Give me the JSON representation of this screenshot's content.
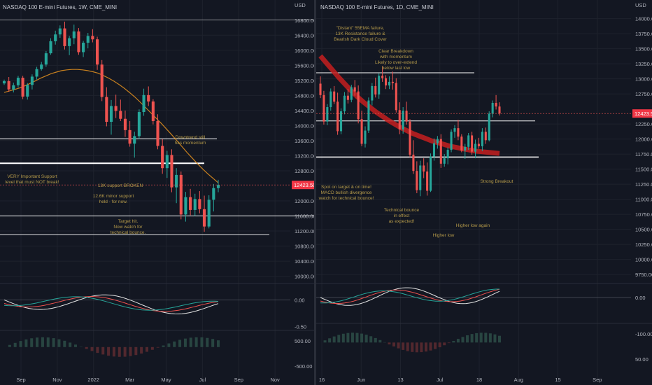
{
  "left": {
    "title": "NASDAQ 100 E-mini Futures, 1W, CME_MINI",
    "price_label": "USD",
    "current_price": "12423.50",
    "price_ticks": [
      16800,
      16400,
      16000,
      15600,
      15200,
      14800,
      14400,
      14000,
      13600,
      13200,
      12800,
      12000,
      11600,
      11200,
      10800,
      10400,
      10000
    ],
    "price_tick_labels": [
      "16800.00",
      "16400.00",
      "16000.00",
      "15600.00",
      "15200.00",
      "14800.00",
      "14400.00",
      "14000.00",
      "13600.00",
      "13200.00",
      "12800.00",
      "12000.00",
      "11600.00",
      "11200.00",
      "10800.00",
      "10400.00",
      "10000.00"
    ],
    "time_labels": [
      "Sep",
      "Nov",
      "2022",
      "Mar",
      "May",
      "Jul",
      "Sep",
      "Nov"
    ],
    "macd_ticks": [
      "0.00",
      "-0.50"
    ],
    "hist_ticks": [
      "500.00",
      "-500.00"
    ],
    "annotations": [
      "Downtrend still\nhas momentum",
      "VERY Important Support\nlevel that must NOT break!",
      "13K support BROKEN",
      "12.6K minor support\nheld - for now.",
      "Target hit.\nNow watch for\ntechnical bounce."
    ]
  },
  "right": {
    "title": "NASDAQ 100 E-mini Futures, 1D, CME_MINI",
    "price_label": "USD",
    "current_price": "12423.50",
    "price_ticks": [
      14000,
      13750,
      13500,
      13250,
      13000,
      12750,
      12250,
      12000,
      11750,
      11500,
      11250,
      11000,
      10750,
      10500,
      10250,
      10000,
      9750
    ],
    "price_tick_labels": [
      "14000.00",
      "13750.00",
      "13500.00",
      "13250.00",
      "13000.00",
      "12750.00",
      "12250.00",
      "12000.00",
      "11750.00",
      "11500.00",
      "11250.00",
      "11000.00",
      "10750.00",
      "10500.00",
      "10250.00",
      "10000.00",
      "9750.00"
    ],
    "time_labels": [
      "16",
      "Jun",
      "13",
      "Jul",
      "18",
      "Aug",
      "15",
      "Sep"
    ],
    "macd_ticks": [
      "0.00"
    ],
    "hist_ticks": [
      "-100.00",
      "50.00"
    ],
    "annotations": [
      "\"Distant\" 55EMA failure,\n13K Resistance failure &\nBearish Dark Cloud Cover",
      "Clear Breakdown\nwith momentum\nLikely to over-extend\nbelow last low",
      "Strong Breakout",
      "Higher low again",
      "Higher low",
      "Technical bounce\nin effect\nas expected!",
      "Spot on target & on time!\nMACD bullish divergence\nwatch for technical bounce!"
    ]
  },
  "colors": {
    "background": "#131722",
    "up": "#26a69a",
    "down": "#ef5350",
    "ema": "#e8931e",
    "annotation": "#b59a4a",
    "level": "#ffffff"
  },
  "chart_data": [
    {
      "type": "candlestick",
      "title": "NASDAQ 100 E-mini Futures, 1W, CME_MINI",
      "x": [
        "Sep",
        "Nov",
        "2022",
        "Mar",
        "May",
        "Jul",
        "Sep",
        "Nov"
      ],
      "ylabel": "USD",
      "ylim": [
        9900,
        17000
      ],
      "ohlc": [
        [
          15120,
          15220,
          15080,
          15180
        ],
        [
          15180,
          15290,
          14900,
          14960
        ],
        [
          14960,
          15140,
          14880,
          15070
        ],
        [
          15070,
          15320,
          15010,
          15270
        ],
        [
          15270,
          15320,
          14700,
          14770
        ],
        [
          14770,
          15130,
          14690,
          15080
        ],
        [
          15080,
          15360,
          14960,
          15300
        ],
        [
          15300,
          15560,
          15220,
          15500
        ],
        [
          15500,
          15690,
          15460,
          15620
        ],
        [
          15620,
          15980,
          15560,
          15920
        ],
        [
          15920,
          16320,
          15880,
          16240
        ],
        [
          16240,
          16520,
          16150,
          16420
        ],
        [
          16420,
          16660,
          16330,
          16580
        ],
        [
          16580,
          16760,
          16020,
          16110
        ],
        [
          16110,
          16380,
          15870,
          16320
        ],
        [
          16320,
          16680,
          16160,
          16500
        ],
        [
          16500,
          16590,
          15880,
          15950
        ],
        [
          15950,
          16250,
          15820,
          16200
        ],
        [
          16200,
          16460,
          16050,
          16380
        ],
        [
          16380,
          16560,
          16210,
          16290
        ],
        [
          16290,
          16360,
          15480,
          15620
        ],
        [
          15620,
          15740,
          14650,
          14760
        ],
        [
          14760,
          15020,
          13980,
          14100
        ],
        [
          14100,
          14680,
          13760,
          14520
        ],
        [
          14520,
          14820,
          14200,
          14390
        ],
        [
          14390,
          14690,
          14120,
          14180
        ],
        [
          14180,
          14400,
          13700,
          13880
        ],
        [
          13880,
          14120,
          13440,
          13520
        ],
        [
          13520,
          13840,
          13150,
          13720
        ],
        [
          13720,
          14430,
          13640,
          14360
        ],
        [
          14360,
          14980,
          14260,
          14810
        ],
        [
          14810,
          15040,
          14520,
          14640
        ],
        [
          14640,
          14700,
          14030,
          14120
        ],
        [
          14120,
          14300,
          13370,
          13460
        ],
        [
          13460,
          13640,
          12720,
          12870
        ],
        [
          12870,
          13330,
          12610,
          13220
        ],
        [
          13220,
          13370,
          12230,
          12360
        ],
        [
          12360,
          12870,
          11940,
          12690
        ],
        [
          12690,
          12780,
          11510,
          11640
        ],
        [
          11640,
          12240,
          11450,
          12100
        ],
        [
          12100,
          12320,
          11620,
          11760
        ],
        [
          11760,
          12190,
          11600,
          12050
        ],
        [
          12050,
          12260,
          11670,
          11780
        ],
        [
          11780,
          12140,
          11180,
          11320
        ],
        [
          11320,
          12150,
          11270,
          12030
        ],
        [
          12030,
          12450,
          11720,
          12340
        ],
        [
          12340,
          12560,
          12230,
          12423.5
        ]
      ],
      "levels": [
        16800,
        13650,
        13000,
        11600,
        11100
      ],
      "ema_55": [
        14880,
        14920,
        14960,
        15000,
        15060,
        15120,
        15190,
        15260,
        15320,
        15380,
        15420,
        15460,
        15480,
        15490,
        15490,
        15480,
        15460,
        15430,
        15390,
        15330,
        15260,
        15180,
        15090,
        14990,
        14880,
        14760,
        14630,
        14490,
        14350,
        14210,
        14070,
        13920,
        13770,
        13610,
        13450,
        13290,
        13140,
        12990,
        12850,
        12720,
        12600,
        12480
      ],
      "panes": [
        "MACD",
        "MACD histogram"
      ]
    },
    {
      "type": "candlestick",
      "title": "NASDAQ 100 E-mini Futures, 1D, CME_MINI",
      "x": [
        "16",
        "Jun",
        "13",
        "Jul",
        "18",
        "Aug",
        "15",
        "Sep"
      ],
      "ylabel": "USD",
      "ylim": [
        9600,
        14100
      ],
      "ohlc": [
        [
          12920,
          13040,
          12680,
          12730
        ],
        [
          12730,
          12800,
          12240,
          12290
        ],
        [
          12290,
          12580,
          12230,
          12530
        ],
        [
          12530,
          12840,
          12470,
          12790
        ],
        [
          12790,
          12880,
          12580,
          12620
        ],
        [
          12620,
          12770,
          12070,
          12130
        ],
        [
          12130,
          12510,
          12080,
          12460
        ],
        [
          12460,
          12780,
          12410,
          12720
        ],
        [
          12720,
          12830,
          12590,
          12650
        ],
        [
          12650,
          12900,
          12610,
          12860
        ],
        [
          12860,
          12980,
          12720,
          12790
        ],
        [
          12790,
          12890,
          12260,
          12330
        ],
        [
          12330,
          12470,
          11880,
          11920
        ],
        [
          11920,
          12210,
          11860,
          12140
        ],
        [
          12140,
          12690,
          12100,
          12640
        ],
        [
          12640,
          12930,
          12560,
          12880
        ],
        [
          12880,
          13020,
          12690,
          12740
        ],
        [
          12740,
          13090,
          12670,
          13050
        ],
        [
          13050,
          13210,
          12950,
          13010
        ],
        [
          13010,
          13060,
          12830,
          12890
        ],
        [
          12890,
          13040,
          12830,
          12950
        ],
        [
          12950,
          13120,
          12820,
          12930
        ],
        [
          12930,
          13010,
          12440,
          12480
        ],
        [
          12480,
          12610,
          12080,
          12160
        ],
        [
          12160,
          12530,
          12090,
          12470
        ],
        [
          12470,
          12620,
          12240,
          12290
        ],
        [
          12290,
          12330,
          11700,
          11740
        ],
        [
          11740,
          11980,
          11420,
          11470
        ],
        [
          11470,
          11630,
          11100,
          11150
        ],
        [
          11150,
          11640,
          11050,
          11560
        ],
        [
          11560,
          11680,
          11350,
          11460
        ],
        [
          11460,
          11610,
          11060,
          11140
        ],
        [
          11140,
          11760,
          11120,
          11710
        ],
        [
          11710,
          12010,
          11640,
          11930
        ],
        [
          11930,
          12050,
          11840,
          12000
        ],
        [
          12000,
          12080,
          11520,
          11590
        ],
        [
          11590,
          11750,
          11540,
          11680
        ],
        [
          11680,
          11860,
          11580,
          11820
        ],
        [
          11820,
          12160,
          11780,
          12120
        ],
        [
          12120,
          12230,
          12020,
          12180
        ],
        [
          12180,
          12320,
          11980,
          12040
        ],
        [
          12040,
          12080,
          11780,
          11810
        ],
        [
          11810,
          11920,
          11670,
          11870
        ],
        [
          11870,
          12100,
          11820,
          12060
        ],
        [
          12060,
          12120,
          11740,
          11790
        ],
        [
          11790,
          11990,
          11680,
          11920
        ],
        [
          11920,
          12020,
          11840,
          11880
        ],
        [
          11880,
          12180,
          11800,
          12120
        ],
        [
          12120,
          12190,
          11920,
          11980
        ],
        [
          11980,
          12460,
          11960,
          12420
        ],
        [
          12420,
          12640,
          12360,
          12600
        ],
        [
          12600,
          12730,
          12490,
          12540
        ],
        [
          12540,
          12610,
          12390,
          12423.5
        ]
      ],
      "levels": [
        13100,
        12300,
        11700
      ],
      "ema_55": [
        13380,
        13260,
        13140,
        13020,
        12910,
        12800,
        12700,
        12610,
        12530,
        12450,
        12380,
        12310,
        12250,
        12190,
        12140,
        12090,
        12050,
        12010,
        11970,
        11940,
        11910,
        11880,
        11860,
        11840,
        11820,
        11800,
        11790,
        11780,
        11770,
        11760
      ],
      "panes": [
        "MACD",
        "MACD histogram"
      ]
    }
  ]
}
